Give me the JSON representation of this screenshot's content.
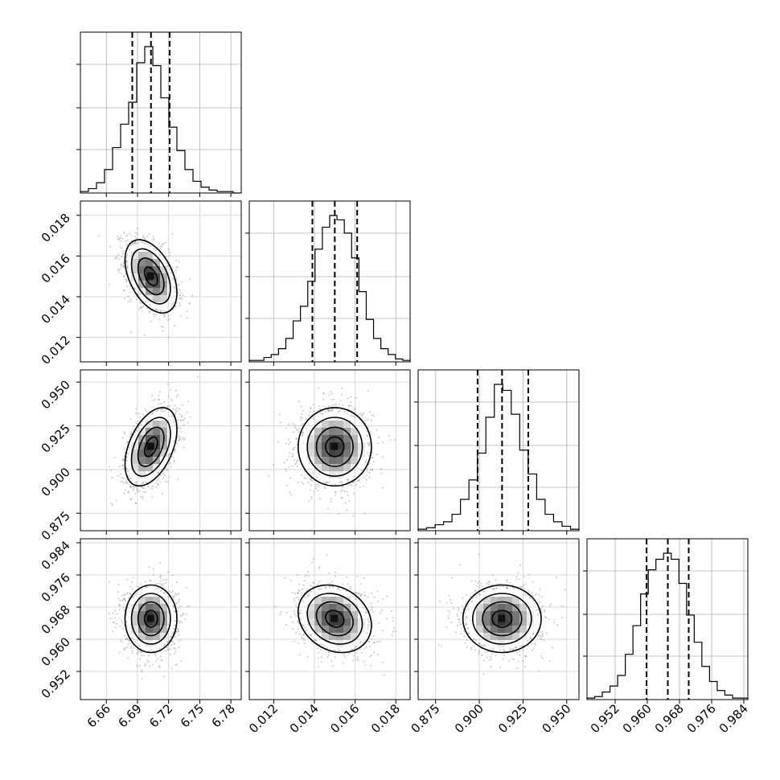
{
  "chart_data": {
    "type": "corner",
    "title": "",
    "parameters": [
      {
        "ticks": [
          "6.66",
          "6.69",
          "6.72",
          "6.75",
          "6.78"
        ],
        "tick_values": [
          6.66,
          6.69,
          6.72,
          6.75,
          6.78
        ],
        "range": [
          6.635,
          6.79
        ],
        "quantiles": [
          6.685,
          6.703,
          6.721
        ]
      },
      {
        "ticks": [
          "0.012",
          "0.014",
          "0.016",
          "0.018"
        ],
        "tick_values": [
          0.012,
          0.014,
          0.016,
          0.018
        ],
        "range": [
          0.0108,
          0.0187
        ],
        "quantiles": [
          0.0139,
          0.015,
          0.0161
        ]
      },
      {
        "ticks": [
          "0.875",
          "0.900",
          "0.925",
          "0.950"
        ],
        "tick_values": [
          0.875,
          0.9,
          0.925,
          0.95
        ],
        "range": [
          0.865,
          0.957
        ],
        "quantiles": [
          0.899,
          0.913,
          0.928
        ]
      },
      {
        "ticks": [
          "0.952",
          "0.960",
          "0.968",
          "0.976",
          "0.984"
        ],
        "tick_values": [
          0.952,
          0.96,
          0.968,
          0.976,
          0.984
        ],
        "range": [
          0.945,
          0.985
        ],
        "quantiles": [
          0.9598,
          0.9651,
          0.9703
        ]
      }
    ],
    "histograms": [
      {
        "counts": [
          1,
          3,
          7,
          16,
          31,
          47,
          62,
          89,
          100,
          87,
          65,
          45,
          29,
          16,
          8,
          4,
          2,
          1,
          1,
          0
        ]
      },
      {
        "counts": [
          1,
          1,
          3,
          5,
          9,
          16,
          28,
          38,
          55,
          77,
          92,
          100,
          97,
          88,
          71,
          48,
          29,
          16,
          9,
          5,
          2,
          1
        ]
      },
      {
        "counts": [
          1,
          2,
          4,
          6,
          11,
          21,
          34,
          52,
          76,
          98,
          94,
          78,
          54,
          38,
          21,
          11,
          6,
          3,
          1
        ]
      },
      {
        "counts": [
          1,
          2,
          5,
          9,
          16,
          30,
          49,
          70,
          86,
          93,
          97,
          93,
          77,
          56,
          38,
          22,
          12,
          6,
          3,
          1,
          1
        ]
      }
    ],
    "pairs": [
      {
        "row": 1,
        "col": 0,
        "mean": [
          6.703,
          0.015
        ],
        "sd": [
          0.0125,
          0.0009
        ],
        "corr": -0.45
      },
      {
        "row": 2,
        "col": 0,
        "mean": [
          6.703,
          0.913
        ],
        "sd": [
          0.0125,
          0.0112
        ],
        "corr": 0.45
      },
      {
        "row": 2,
        "col": 1,
        "mean": [
          0.015,
          0.913
        ],
        "sd": [
          0.0009,
          0.0112
        ],
        "corr": 0.0
      },
      {
        "row": 3,
        "col": 0,
        "mean": [
          6.703,
          0.9651
        ],
        "sd": [
          0.0125,
          0.0042
        ],
        "corr": 0.0
      },
      {
        "row": 3,
        "col": 1,
        "mean": [
          0.015,
          0.9651
        ],
        "sd": [
          0.0009,
          0.0042
        ],
        "corr": -0.2
      },
      {
        "row": 3,
        "col": 2,
        "mean": [
          0.913,
          0.9651
        ],
        "sd": [
          0.0112,
          0.0042
        ],
        "corr": 0.0
      }
    ],
    "contour_levels_sigma": [
      0.5,
      1.0,
      1.5,
      2.0
    ],
    "grid": true,
    "legend": "none"
  }
}
